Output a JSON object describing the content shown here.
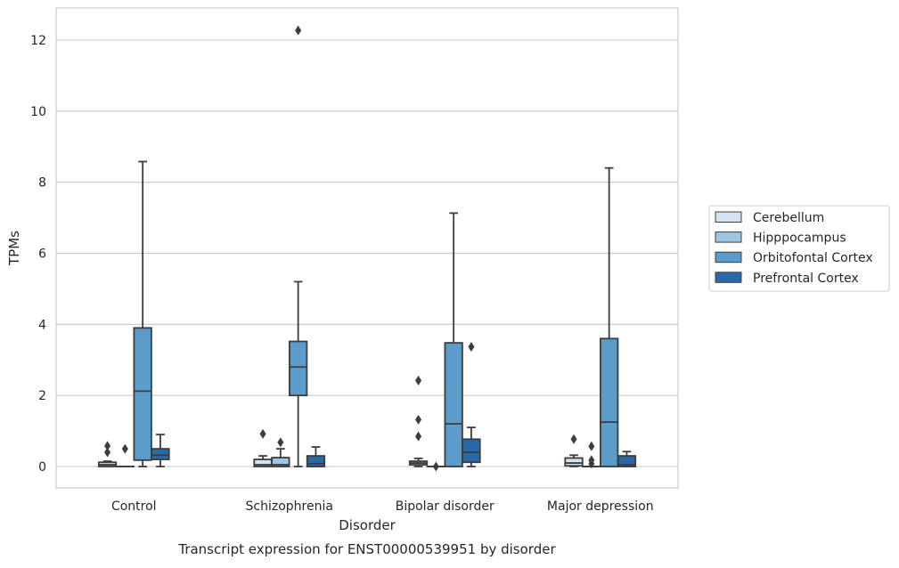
{
  "chart_data": {
    "type": "box",
    "caption": "Transcript expression for ENST00000539951 by disorder",
    "xlabel": "Disorder",
    "ylabel": "TPMs",
    "ylim": [
      -0.6,
      12.9
    ],
    "yticks": [
      0,
      2,
      4,
      6,
      8,
      10,
      12
    ],
    "grid": "horizontal",
    "legend_position": "right",
    "categories": [
      "Control",
      "Schizophrenia",
      "Bipolar disorder",
      "Major depression"
    ],
    "series": [
      {
        "name": "Cerebellum",
        "color": "#d4e3f2",
        "boxes": [
          {
            "whislo": 0,
            "q1": 0,
            "med": 0.05,
            "q3": 0.12,
            "whishi": 0.15,
            "fliers": [
              0.4,
              0.58
            ]
          },
          {
            "whislo": 0,
            "q1": 0,
            "med": 0.05,
            "q3": 0.2,
            "whishi": 0.3,
            "fliers": [
              0.92
            ]
          },
          {
            "whislo": 0,
            "q1": 0.05,
            "med": 0.1,
            "q3": 0.15,
            "whishi": 0.23,
            "fliers": [
              0.85,
              1.32,
              2.42
            ]
          },
          {
            "whislo": 0,
            "q1": 0.02,
            "med": 0.1,
            "q3": 0.24,
            "whishi": 0.32,
            "fliers": [
              0.77
            ]
          }
        ]
      },
      {
        "name": "Hipppocampus",
        "color": "#9dc7e0",
        "boxes": [
          {
            "whislo": 0,
            "q1": 0,
            "med": 0,
            "q3": 0,
            "whishi": 0,
            "fliers": [
              0.5
            ]
          },
          {
            "whislo": 0,
            "q1": 0,
            "med": 0.05,
            "q3": 0.25,
            "whishi": 0.5,
            "fliers": [
              0.68
            ]
          },
          {
            "whislo": 0,
            "q1": 0,
            "med": 0,
            "q3": 0,
            "whishi": 0,
            "fliers": [
              0
            ]
          },
          {
            "whislo": 0,
            "q1": 0,
            "med": 0,
            "q3": 0,
            "whishi": 0,
            "fliers": [
              0.08,
              0.18,
              0.57
            ]
          }
        ]
      },
      {
        "name": "Orbitofontal Cortex",
        "color": "#5b9ccb",
        "boxes": [
          {
            "whislo": 0,
            "q1": 0.18,
            "med": 2.12,
            "q3": 3.9,
            "whishi": 8.58,
            "fliers": []
          },
          {
            "whislo": 0,
            "q1": 2.0,
            "med": 2.8,
            "q3": 3.52,
            "whishi": 5.2,
            "fliers": [
              12.27
            ]
          },
          {
            "whislo": 0,
            "q1": 0,
            "med": 1.2,
            "q3": 3.48,
            "whishi": 7.13,
            "fliers": []
          },
          {
            "whislo": 0,
            "q1": 0,
            "med": 1.25,
            "q3": 3.6,
            "whishi": 8.4,
            "fliers": []
          }
        ]
      },
      {
        "name": "Prefrontal Cortex",
        "color": "#2a69a8",
        "boxes": [
          {
            "whislo": 0,
            "q1": 0.2,
            "med": 0.32,
            "q3": 0.5,
            "whishi": 0.9,
            "fliers": []
          },
          {
            "whislo": 0,
            "q1": 0,
            "med": 0.08,
            "q3": 0.3,
            "whishi": 0.55,
            "fliers": []
          },
          {
            "whislo": 0,
            "q1": 0.12,
            "med": 0.4,
            "q3": 0.77,
            "whishi": 1.1,
            "fliers": [
              3.37
            ]
          },
          {
            "whislo": 0,
            "q1": 0,
            "med": 0.05,
            "q3": 0.3,
            "whishi": 0.42,
            "fliers": []
          }
        ]
      }
    ]
  }
}
